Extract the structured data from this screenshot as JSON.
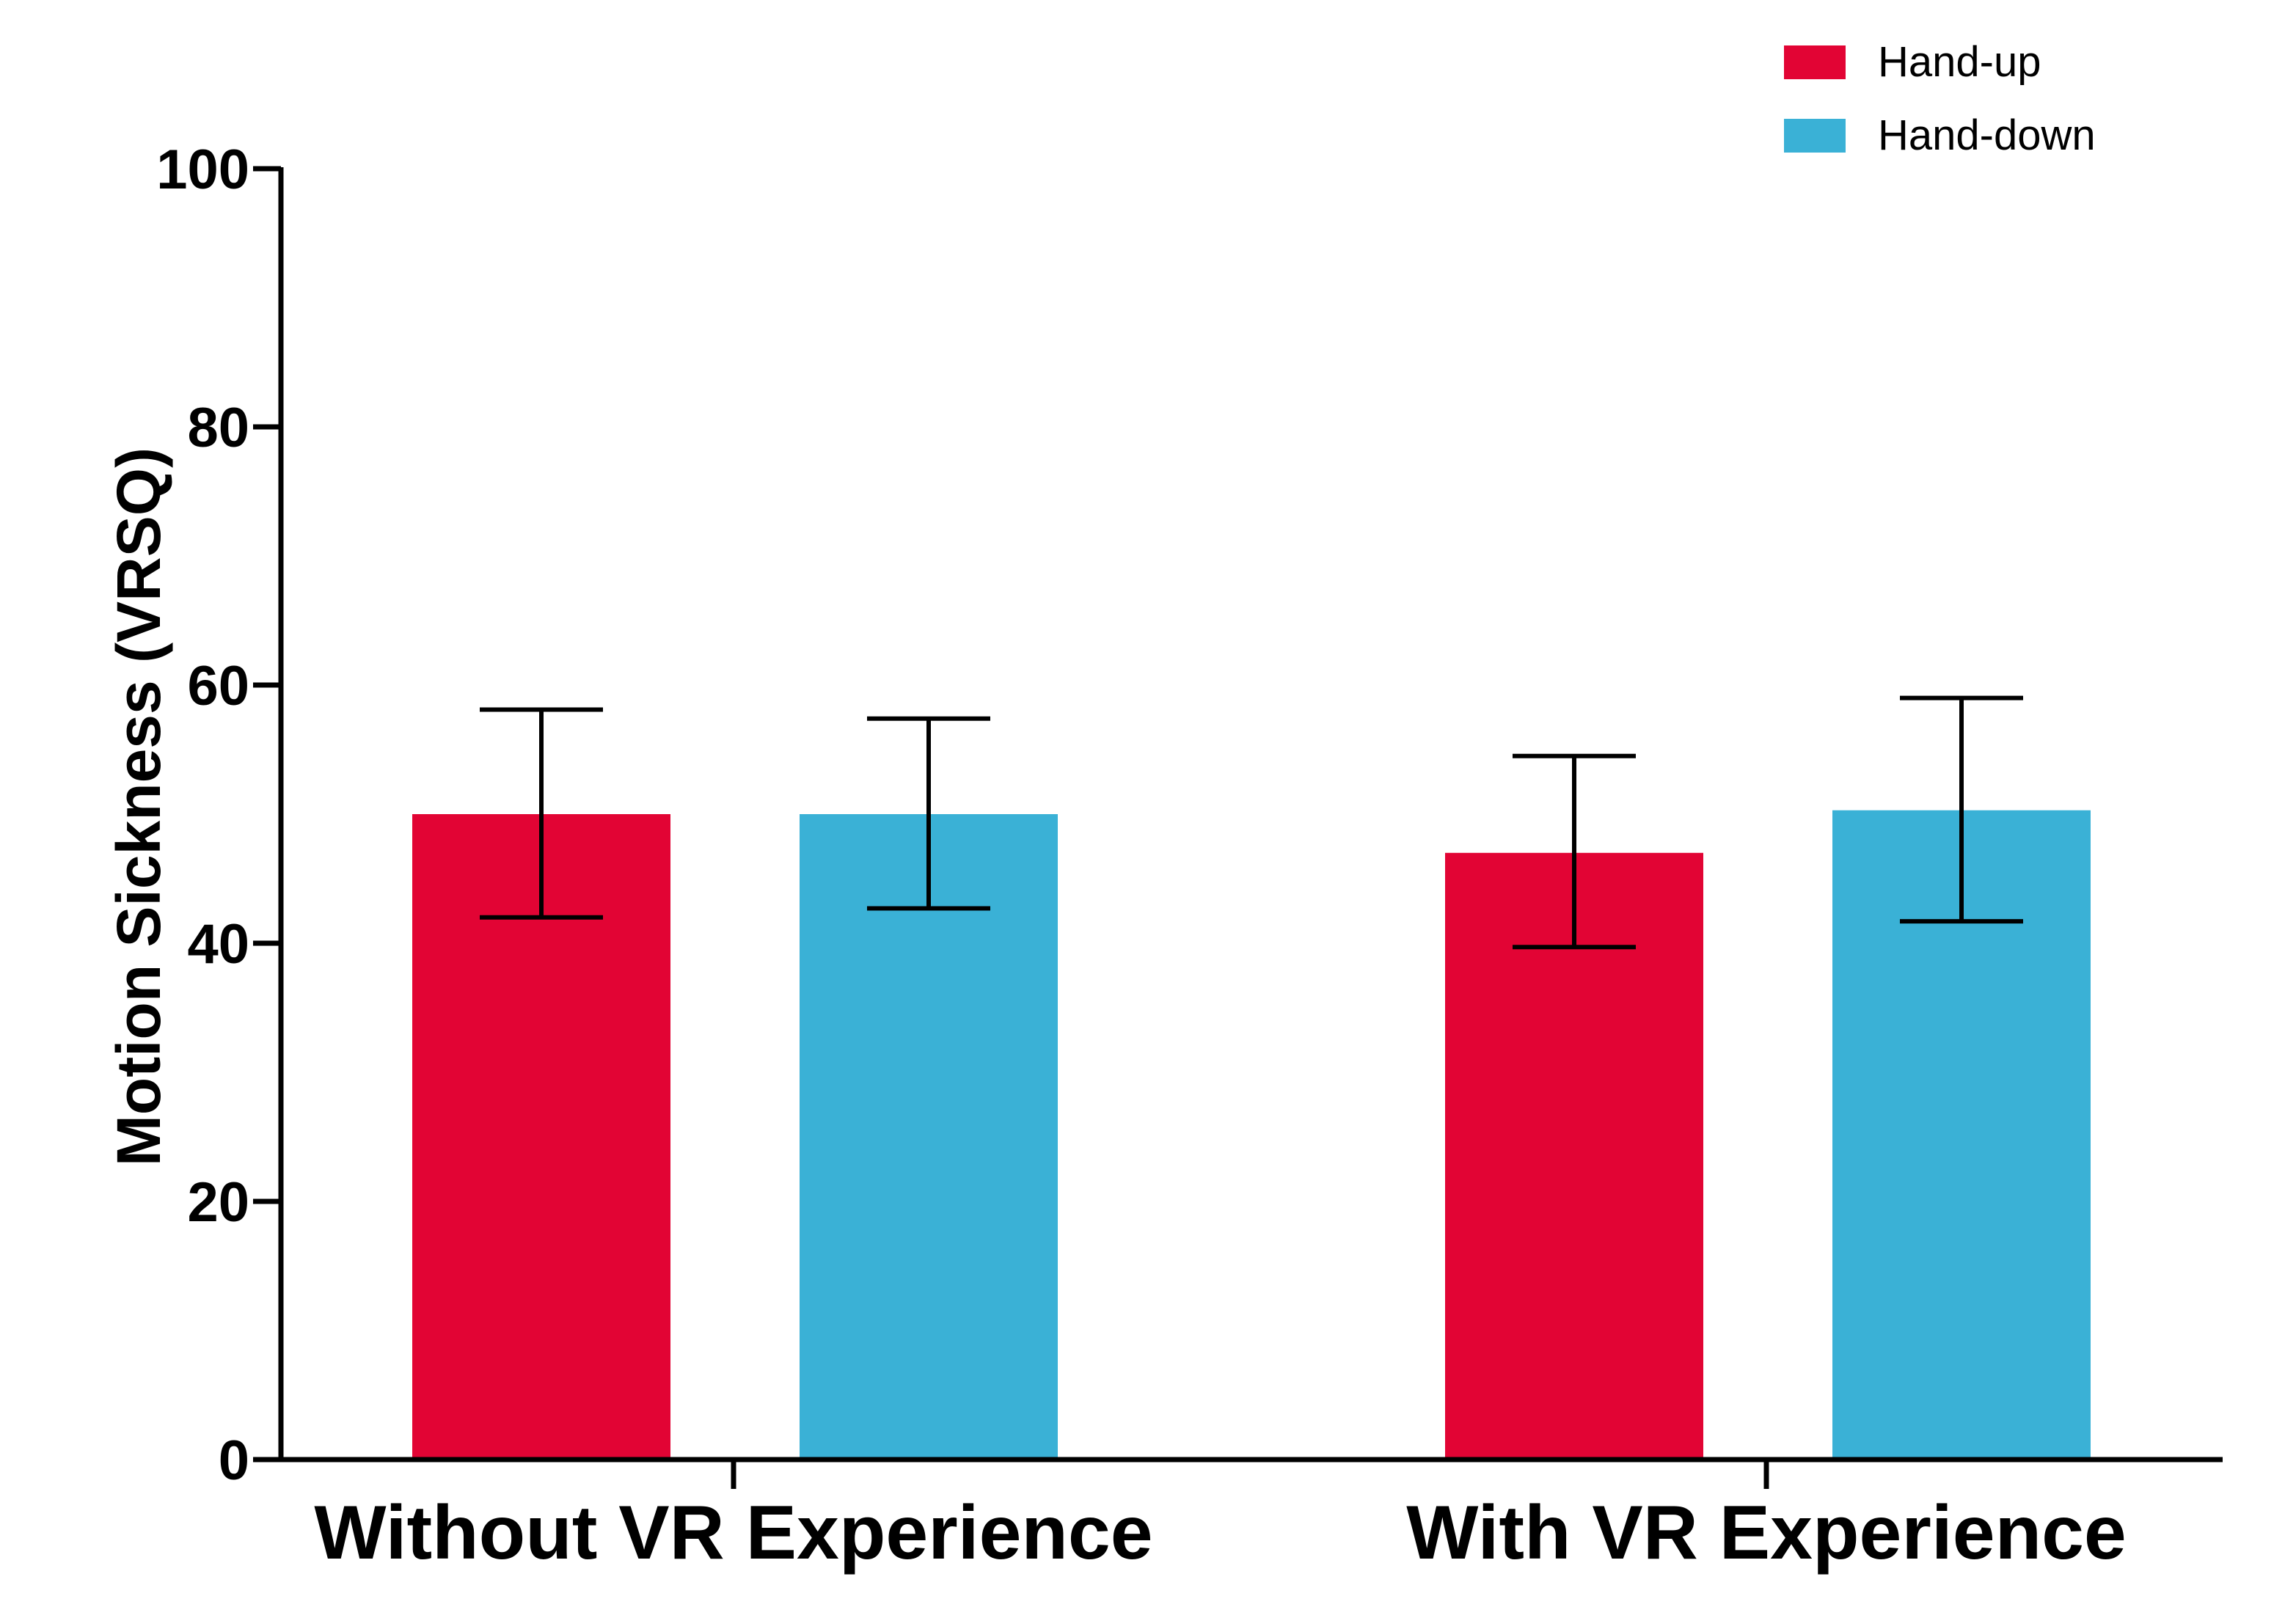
{
  "chart_data": {
    "type": "bar",
    "title": "",
    "xlabel": "",
    "ylabel": "Motion Sickness (VRSQ)",
    "ylim": [
      0,
      100
    ],
    "yticks": [
      0,
      20,
      40,
      60,
      80,
      100
    ],
    "categories": [
      "Without VR Experience",
      "With VR Experience"
    ],
    "series": [
      {
        "name": "Hand-up",
        "color": "#e20434",
        "values": [
          50.0,
          47.0
        ],
        "error_low": [
          42.0,
          39.7
        ],
        "error_high": [
          58.1,
          54.5
        ]
      },
      {
        "name": "Hand-down",
        "color": "#3ab1d6",
        "values": [
          50.0,
          50.3
        ],
        "error_low": [
          42.7,
          41.7
        ],
        "error_high": [
          57.4,
          59.0
        ]
      }
    ],
    "grid": false,
    "legend_position": "top-right"
  }
}
